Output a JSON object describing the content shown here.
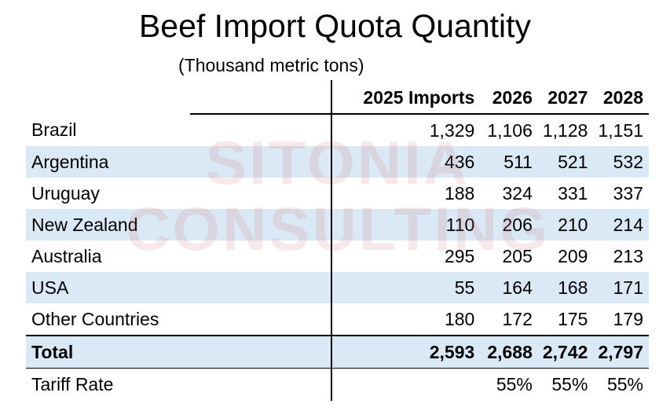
{
  "title": "Beef Import Quota Quantity",
  "subtitle": "(Thousand metric tons)",
  "watermark": [
    "SITONIA",
    "CONSULTING"
  ],
  "columns": [
    "2025 Imports",
    "2026",
    "2027",
    "2028"
  ],
  "rows": [
    {
      "country": "Brazil",
      "values": [
        "1,329",
        "1,106",
        "1,128",
        "1,151"
      ]
    },
    {
      "country": "Argentina",
      "values": [
        "436",
        "511",
        "521",
        "532"
      ]
    },
    {
      "country": "Uruguay",
      "values": [
        "188",
        "324",
        "331",
        "337"
      ]
    },
    {
      "country": "New Zealand",
      "values": [
        "110",
        "206",
        "210",
        "214"
      ]
    },
    {
      "country": "Australia",
      "values": [
        "295",
        "205",
        "209",
        "213"
      ]
    },
    {
      "country": "USA",
      "values": [
        "55",
        "164",
        "168",
        "171"
      ]
    },
    {
      "country": "Other Countries",
      "values": [
        "180",
        "172",
        "175",
        "179"
      ]
    }
  ],
  "total": {
    "label": "Total",
    "values": [
      "2,593",
      "2,688",
      "2,742",
      "2,797"
    ]
  },
  "tariff": {
    "label": "Tariff Rate",
    "values": [
      "",
      "55%",
      "55%",
      "55%"
    ]
  },
  "colors": {
    "row_shade": "#dbe8f6",
    "watermark": "#cd7878"
  }
}
